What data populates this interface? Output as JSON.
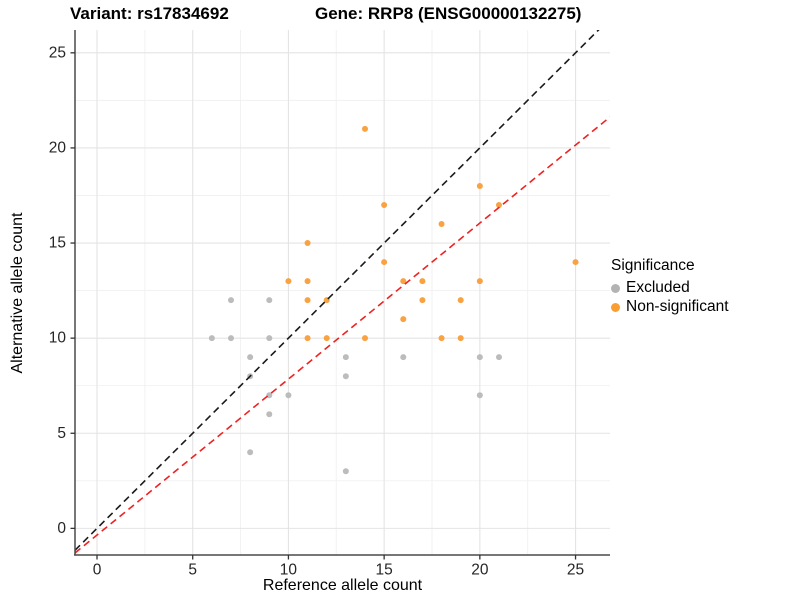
{
  "title": {
    "variant": "Variant: rs17834692",
    "gene": "Gene: RRP8 (ENSG00000132275)"
  },
  "chart_data": {
    "type": "scatter",
    "xlabel": "Reference allele count",
    "ylabel": "Alternative allele count",
    "x_ticks": [
      0,
      5,
      10,
      15,
      20,
      25
    ],
    "y_ticks": [
      0,
      5,
      10,
      15,
      20,
      25
    ],
    "x_minor": [
      2.5,
      7.5,
      12.5,
      17.5,
      22.5
    ],
    "y_minor": [
      2.5,
      7.5,
      12.5,
      17.5,
      22.5
    ],
    "xlim": [
      -1.15,
      26.8
    ],
    "ylim": [
      -1.4,
      26.2
    ],
    "grid": "major+minor",
    "legend": {
      "title": "Significance",
      "position": "right",
      "entries": [
        {
          "label": "Excluded",
          "color": "#B3B3B3"
        },
        {
          "label": "Non-significant",
          "color": "#FA9E33"
        }
      ]
    },
    "series": [
      {
        "name": "Excluded",
        "color": "#BCBCBC",
        "points": [
          [
            6,
            10
          ],
          [
            7,
            10
          ],
          [
            7,
            12
          ],
          [
            8,
            4
          ],
          [
            8,
            8
          ],
          [
            8,
            9
          ],
          [
            9,
            6
          ],
          [
            9,
            7
          ],
          [
            9,
            10
          ],
          [
            9,
            12
          ],
          [
            10,
            7
          ],
          [
            13,
            3
          ],
          [
            13,
            8
          ],
          [
            13,
            9
          ],
          [
            16,
            9
          ],
          [
            20,
            7
          ],
          [
            20,
            9
          ],
          [
            21,
            9
          ]
        ]
      },
      {
        "name": "Non-significant",
        "color": "#F9A242",
        "points": [
          [
            10,
            13
          ],
          [
            11,
            10
          ],
          [
            11,
            12
          ],
          [
            11,
            13
          ],
          [
            11,
            15
          ],
          [
            12,
            10
          ],
          [
            12,
            12
          ],
          [
            14,
            10
          ],
          [
            14,
            21
          ],
          [
            15,
            14
          ],
          [
            15,
            17
          ],
          [
            16,
            11
          ],
          [
            16,
            13
          ],
          [
            17,
            12
          ],
          [
            17,
            13
          ],
          [
            18,
            10
          ],
          [
            18,
            16
          ],
          [
            19,
            10
          ],
          [
            19,
            12
          ],
          [
            20,
            13
          ],
          [
            20,
            18
          ],
          [
            21,
            17
          ],
          [
            25,
            14
          ]
        ]
      }
    ],
    "lines": [
      {
        "name": "identity-line",
        "style": "dashed",
        "color": "#1A1A1A",
        "slope": 1,
        "intercept": 0
      },
      {
        "name": "expected-line",
        "style": "dashed",
        "color": "#EE2222",
        "slope": 0.82,
        "intercept": -0.35
      }
    ],
    "colors": {
      "grid_major": "#E4E4E4",
      "grid_minor": "#F1F1F1",
      "axis_line": "#4A4A4A",
      "tick": "#333333",
      "tick_label": "#262626"
    }
  }
}
